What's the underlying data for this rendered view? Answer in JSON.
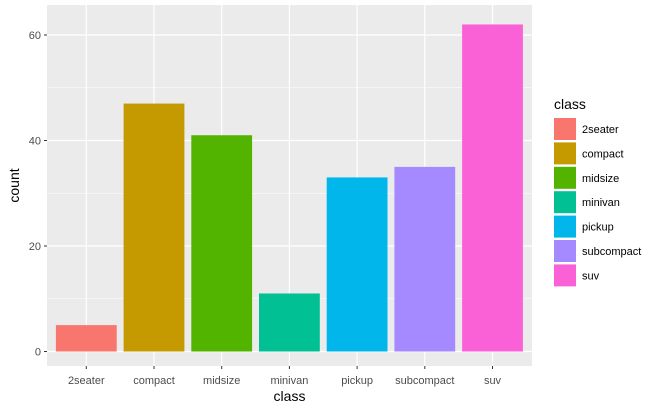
{
  "chart_data": {
    "type": "bar",
    "title": "",
    "xlabel": "class",
    "ylabel": "count",
    "categories": [
      "2seater",
      "compact",
      "midsize",
      "minivan",
      "pickup",
      "subcompact",
      "suv"
    ],
    "values": [
      5,
      47,
      41,
      11,
      33,
      35,
      62
    ],
    "colors": [
      "#F8766D",
      "#C49A00",
      "#53B400",
      "#00C094",
      "#00B6EB",
      "#A58AFF",
      "#FB61D7"
    ],
    "ylim": [
      0,
      65
    ],
    "yticks": [
      0,
      20,
      40,
      60
    ],
    "grid": true,
    "legend": {
      "title": "class",
      "placement": "right",
      "entries": [
        "2seater",
        "compact",
        "midsize",
        "minivan",
        "pickup",
        "subcompact",
        "suv"
      ]
    }
  }
}
